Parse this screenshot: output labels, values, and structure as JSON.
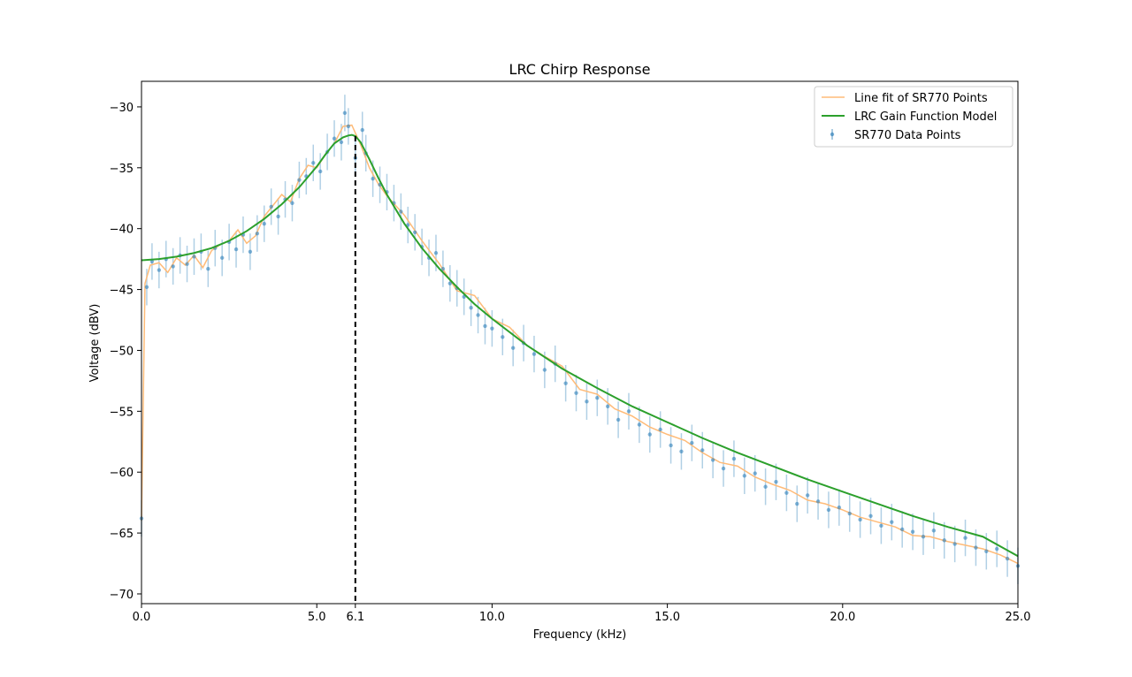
{
  "chart_data": {
    "type": "line",
    "title": "LRC Chirp Response",
    "xlabel": "Frequency (kHz)",
    "ylabel": "Voltage (dBV)",
    "xlim": [
      0,
      25
    ],
    "ylim": [
      -70.8,
      -27.9
    ],
    "x_ticks": [
      0.0,
      5.0,
      6.1,
      10.0,
      15.0,
      20.0,
      25.0
    ],
    "x_tick_labels": [
      "0.0",
      "5.0",
      "6.1",
      "10.0",
      "15.0",
      "20.0",
      "25.0"
    ],
    "y_ticks": [
      -30,
      -35,
      -40,
      -45,
      -50,
      -55,
      -60,
      -65,
      -70
    ],
    "y_tick_labels": [
      "−30",
      "−35",
      "−40",
      "−45",
      "−50",
      "−55",
      "−60",
      "−65",
      "−70"
    ],
    "grid": false,
    "legend_position": "top-right",
    "resonance_marker": {
      "x": 6.1,
      "style": "dashed",
      "color": "#000000"
    },
    "series": [
      {
        "name": "Line fit of SR770 Points",
        "kind": "line",
        "color": "#ffbb78",
        "x": [
          0.0,
          0.1,
          0.25,
          0.5,
          0.75,
          1.0,
          1.25,
          1.5,
          1.75,
          2.0,
          2.25,
          2.5,
          2.75,
          3.0,
          3.25,
          3.5,
          3.75,
          4.0,
          4.25,
          4.5,
          4.75,
          5.0,
          5.25,
          5.5,
          5.75,
          6.0,
          6.25,
          6.5,
          6.75,
          7.0,
          7.5,
          8.0,
          8.5,
          9.0,
          9.5,
          10.0,
          10.5,
          11.0,
          11.5,
          12.0,
          12.5,
          13.0,
          13.5,
          14.0,
          14.5,
          15.0,
          15.5,
          16.0,
          16.5,
          17.0,
          17.5,
          18.0,
          18.5,
          19.0,
          19.5,
          20.0,
          20.5,
          21.0,
          21.5,
          22.0,
          22.5,
          23.0,
          23.5,
          24.0,
          24.5,
          25.0
        ],
        "y": [
          -64.0,
          -44.5,
          -43.0,
          -42.8,
          -43.6,
          -42.4,
          -43.0,
          -42.2,
          -43.2,
          -41.8,
          -41.3,
          -41.0,
          -40.1,
          -41.2,
          -40.6,
          -39.0,
          -38.1,
          -37.2,
          -37.8,
          -35.9,
          -34.8,
          -35.0,
          -33.9,
          -33.0,
          -31.6,
          -31.5,
          -33.1,
          -35.0,
          -36.3,
          -37.3,
          -38.9,
          -41.0,
          -42.9,
          -45.1,
          -45.5,
          -47.4,
          -48.1,
          -49.6,
          -50.5,
          -51.3,
          -53.2,
          -53.6,
          -54.8,
          -55.4,
          -56.3,
          -56.9,
          -57.4,
          -58.4,
          -59.2,
          -59.5,
          -60.4,
          -61.0,
          -61.5,
          -62.3,
          -62.6,
          -63.1,
          -63.7,
          -64.1,
          -64.5,
          -65.2,
          -65.3,
          -65.7,
          -66.0,
          -66.3,
          -66.8,
          -67.5
        ]
      },
      {
        "name": "LRC Gain Function Model",
        "kind": "line",
        "color": "#2ca02c",
        "x": [
          0.0,
          0.5,
          1.0,
          1.5,
          2.0,
          2.5,
          3.0,
          3.5,
          4.0,
          4.5,
          5.0,
          5.25,
          5.5,
          5.75,
          5.9,
          6.0,
          6.1,
          6.25,
          6.5,
          6.75,
          7.0,
          7.5,
          8.0,
          8.5,
          9.0,
          9.5,
          10.0,
          11.0,
          12.0,
          13.0,
          14.0,
          15.0,
          16.0,
          17.0,
          18.0,
          19.0,
          20.0,
          21.0,
          22.0,
          23.0,
          24.0,
          25.0
        ],
        "y": [
          -42.6,
          -42.5,
          -42.3,
          -42.0,
          -41.6,
          -41.0,
          -40.2,
          -39.2,
          -38.0,
          -36.6,
          -34.9,
          -33.9,
          -33.0,
          -32.5,
          -32.35,
          -32.3,
          -32.4,
          -32.9,
          -34.3,
          -35.8,
          -37.2,
          -39.6,
          -41.6,
          -43.3,
          -44.8,
          -46.2,
          -47.4,
          -49.6,
          -51.5,
          -53.1,
          -54.6,
          -55.9,
          -57.2,
          -58.4,
          -59.5,
          -60.6,
          -61.6,
          -62.6,
          -63.6,
          -64.5,
          -65.3,
          -66.9
        ]
      },
      {
        "name": "SR770 Data Points",
        "kind": "errorbar",
        "color": "#1f77b4",
        "error": 1.5,
        "x": [
          0.0,
          0.15,
          0.3,
          0.5,
          0.7,
          0.9,
          1.1,
          1.3,
          1.5,
          1.7,
          1.9,
          2.1,
          2.3,
          2.5,
          2.7,
          2.9,
          3.1,
          3.3,
          3.5,
          3.7,
          3.9,
          4.1,
          4.3,
          4.5,
          4.7,
          4.9,
          5.1,
          5.3,
          5.5,
          5.7,
          5.8,
          5.9,
          6.1,
          6.3,
          6.4,
          6.6,
          6.8,
          7.0,
          7.2,
          7.4,
          7.6,
          7.8,
          8.0,
          8.2,
          8.4,
          8.6,
          8.8,
          9.0,
          9.2,
          9.4,
          9.6,
          9.8,
          10.0,
          10.3,
          10.6,
          10.9,
          11.2,
          11.5,
          11.8,
          12.1,
          12.4,
          12.7,
          13.0,
          13.3,
          13.6,
          13.9,
          14.2,
          14.5,
          14.8,
          15.1,
          15.4,
          15.7,
          16.0,
          16.3,
          16.6,
          16.9,
          17.2,
          17.5,
          17.8,
          18.1,
          18.4,
          18.7,
          19.0,
          19.3,
          19.6,
          19.9,
          20.2,
          20.5,
          20.8,
          21.1,
          21.4,
          21.7,
          22.0,
          22.3,
          22.6,
          22.9,
          23.2,
          23.5,
          23.8,
          24.1,
          24.4,
          24.7,
          25.0
        ],
        "y": [
          -63.8,
          -44.8,
          -42.7,
          -43.4,
          -42.5,
          -43.1,
          -42.2,
          -42.9,
          -42.3,
          -41.9,
          -43.3,
          -41.6,
          -42.4,
          -41.1,
          -41.7,
          -40.5,
          -41.9,
          -40.4,
          -39.6,
          -38.2,
          -39.0,
          -37.6,
          -37.9,
          -36.0,
          -35.7,
          -34.6,
          -35.3,
          -33.7,
          -32.6,
          -32.9,
          -30.5,
          -31.6,
          -34.2,
          -31.9,
          -33.8,
          -35.9,
          -36.4,
          -37.0,
          -37.9,
          -38.6,
          -39.7,
          -40.3,
          -41.5,
          -42.4,
          -42.0,
          -43.3,
          -44.5,
          -44.9,
          -45.6,
          -46.5,
          -47.1,
          -48.0,
          -48.2,
          -48.9,
          -49.8,
          -49.4,
          -50.3,
          -51.6,
          -51.1,
          -52.7,
          -53.5,
          -54.2,
          -53.9,
          -54.6,
          -55.7,
          -55.0,
          -56.1,
          -56.9,
          -56.5,
          -57.8,
          -58.3,
          -57.6,
          -58.2,
          -59.0,
          -59.7,
          -58.9,
          -60.3,
          -60.1,
          -61.2,
          -60.8,
          -61.7,
          -62.6,
          -61.9,
          -62.4,
          -63.1,
          -62.9,
          -63.4,
          -63.9,
          -63.6,
          -64.4,
          -64.1,
          -64.7,
          -64.9,
          -65.3,
          -64.8,
          -65.6,
          -65.9,
          -65.4,
          -66.2,
          -66.5,
          -66.3,
          -67.1,
          -67.7
        ]
      }
    ]
  }
}
